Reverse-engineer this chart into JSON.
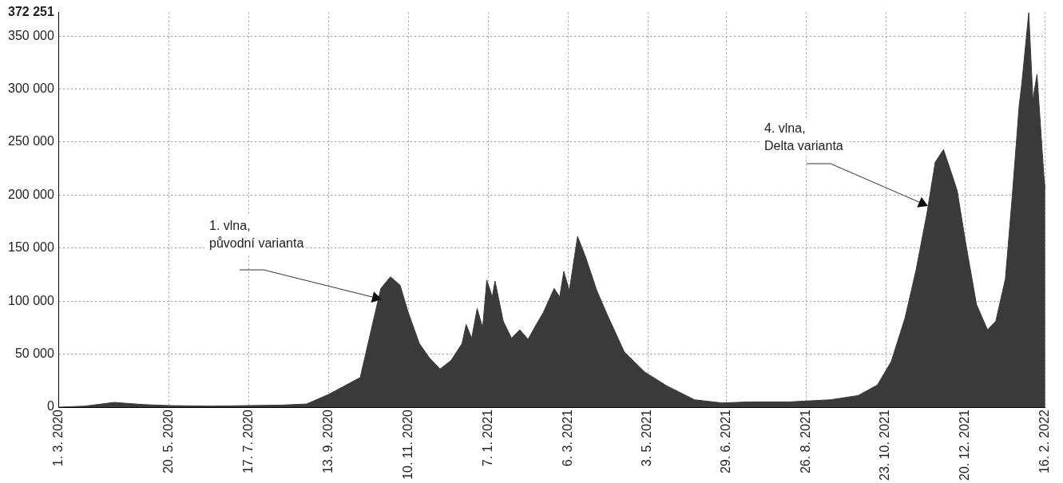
{
  "chart_data": {
    "type": "area",
    "color": "#3a3a3a",
    "x": [
      "2020-03-01",
      "2020-03-20",
      "2020-04-10",
      "2020-05-01",
      "2020-05-20",
      "2020-06-20",
      "2020-07-17",
      "2020-08-10",
      "2020-08-28",
      "2020-09-13",
      "2020-10-06",
      "2020-10-14",
      "2020-10-21",
      "2020-10-28",
      "2020-11-04",
      "2020-11-10",
      "2020-11-18",
      "2020-11-25",
      "2020-12-03",
      "2020-12-11",
      "2020-12-19",
      "2020-12-22",
      "2020-12-26",
      "2020-12-30",
      "2021-01-03",
      "2021-01-06",
      "2021-01-10",
      "2021-01-12",
      "2021-01-18",
      "2021-01-24",
      "2021-01-30",
      "2021-02-05",
      "2021-02-11",
      "2021-02-16",
      "2021-02-24",
      "2021-02-28",
      "2021-03-03",
      "2021-03-07",
      "2021-03-13",
      "2021-03-19",
      "2021-03-27",
      "2021-04-04",
      "2021-04-16",
      "2021-05-01",
      "2021-05-17",
      "2021-06-06",
      "2021-06-26",
      "2021-07-16",
      "2021-08-14",
      "2021-09-13",
      "2021-10-03",
      "2021-10-17",
      "2021-10-27",
      "2021-11-06",
      "2021-11-14",
      "2021-11-22",
      "2021-11-28",
      "2021-12-04",
      "2021-12-10",
      "2021-12-14",
      "2021-12-20",
      "2021-12-28",
      "2022-01-05",
      "2022-01-11",
      "2022-01-18",
      "2022-01-23",
      "2022-01-28",
      "2022-01-30",
      "2022-02-04",
      "2022-02-07",
      "2022-02-10",
      "2022-02-15",
      "2022-02-16"
    ],
    "values": [
      0,
      1000,
      4500,
      2500,
      1500,
      1000,
      1500,
      2000,
      3000,
      12000,
      28000,
      73000,
      112000,
      123000,
      115000,
      89000,
      60000,
      47000,
      36000,
      44000,
      60000,
      78000,
      65000,
      93000,
      75000,
      120000,
      104000,
      119000,
      81000,
      65000,
      73000,
      64000,
      78000,
      89000,
      112000,
      104000,
      128000,
      110000,
      161000,
      141000,
      110000,
      86000,
      52000,
      33000,
      20000,
      7000,
      4000,
      5000,
      5000,
      7000,
      11000,
      21000,
      43000,
      84000,
      129000,
      183000,
      231000,
      243000,
      220000,
      204000,
      156000,
      97000,
      73000,
      81000,
      121000,
      199000,
      284000,
      306000,
      372251,
      290000,
      314000,
      218000,
      205000
    ],
    "xlim": [
      "2020-03-01",
      "2022-02-16"
    ],
    "xticks": [
      {
        "value": "2020-03-01",
        "label": "1. 3. 2020"
      },
      {
        "value": "2020-05-20",
        "label": "20. 5. 2020"
      },
      {
        "value": "2020-07-17",
        "label": "17. 7. 2020"
      },
      {
        "value": "2020-09-13",
        "label": "13. 9. 2020"
      },
      {
        "value": "2020-11-10",
        "label": "10. 11. 2020"
      },
      {
        "value": "2021-01-07",
        "label": "7. 1. 2021"
      },
      {
        "value": "2021-03-06",
        "label": "6. 3. 2021"
      },
      {
        "value": "2021-05-03",
        "label": "3. 5. 2021"
      },
      {
        "value": "2021-06-29",
        "label": "29. 6. 2021"
      },
      {
        "value": "2021-08-26",
        "label": "26. 8. 2021"
      },
      {
        "value": "2021-10-23",
        "label": "23. 10. 2021"
      },
      {
        "value": "2021-12-20",
        "label": "20. 12. 2021"
      },
      {
        "value": "2022-02-16",
        "label": "16. 2. 2022"
      }
    ],
    "ylim": [
      0,
      372251
    ],
    "yticks": [
      {
        "value": 0,
        "label": "0"
      },
      {
        "value": 50000,
        "label": "50 000"
      },
      {
        "value": 100000,
        "label": "100 000"
      },
      {
        "value": 150000,
        "label": "150 000"
      },
      {
        "value": 200000,
        "label": "200 000"
      },
      {
        "value": 250000,
        "label": "250 000"
      },
      {
        "value": 300000,
        "label": "300 000"
      },
      {
        "value": 350000,
        "label": "350 000"
      },
      {
        "value": 372251,
        "label": "372 251"
      }
    ],
    "grid": true,
    "annotations": [
      "1. vlna,\npůvodní varianta",
      "4. vlna,\nDelta varianta"
    ]
  }
}
